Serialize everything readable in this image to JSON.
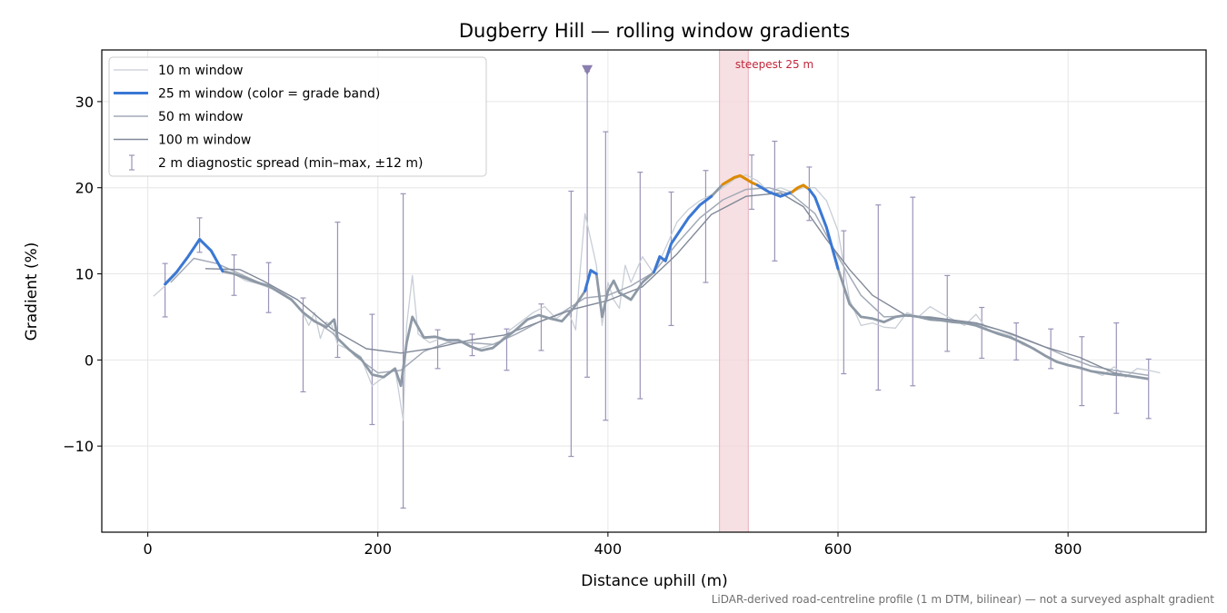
{
  "chart_data": {
    "type": "line",
    "title": "Dugberry Hill — rolling window gradients",
    "xlabel": "Distance uphill (m)",
    "ylabel": "Gradient (%)",
    "footnote": "LiDAR-derived road-centreline profile (1 m DTM, bilinear) — not a surveyed asphalt gradient",
    "xlim": [
      -40,
      920
    ],
    "ylim": [
      -20,
      36
    ],
    "xticks": [
      0,
      200,
      400,
      600,
      800
    ],
    "xtick_labels": [
      "0",
      "200",
      "400",
      "600",
      "800"
    ],
    "yticks": [
      -10,
      0,
      10,
      20,
      30
    ],
    "ytick_labels": [
      "−10",
      "0",
      "10",
      "20",
      "30"
    ],
    "grid": true,
    "legend_position": "top-left",
    "colors": {
      "w10": "#c8ced6",
      "w25_band_low": "#3a78d4",
      "w25_band_high": "#dd8a00",
      "w25_base": "#8e99a6",
      "w50": "#a2aab7",
      "w100": "#808898",
      "spread": "#9c93b8",
      "steep_span": "#f4d5da",
      "steep_edge": "#e8aeb8",
      "max_marker": "#8a7fb0"
    },
    "series": [
      {
        "name": "10 m window",
        "key": "w10",
        "x": [
          5,
          15,
          25,
          35,
          45,
          55,
          65,
          75,
          85,
          95,
          105,
          115,
          125,
          135,
          140,
          145,
          150,
          155,
          160,
          165,
          175,
          185,
          195,
          205,
          215,
          222,
          225,
          230,
          235,
          245,
          255,
          265,
          275,
          285,
          295,
          305,
          315,
          325,
          335,
          345,
          355,
          365,
          372,
          375,
          380,
          385,
          390,
          395,
          400,
          405,
          410,
          415,
          420,
          430,
          440,
          450,
          460,
          470,
          480,
          490,
          500,
          510,
          520,
          530,
          540,
          550,
          560,
          570,
          580,
          590,
          600,
          610,
          620,
          630,
          640,
          650,
          660,
          670,
          680,
          690,
          700,
          710,
          720,
          730,
          740,
          750,
          760,
          770,
          780,
          790,
          800,
          810,
          820,
          830,
          840,
          850,
          860,
          870,
          880
        ],
        "y": [
          7.4,
          8.6,
          10,
          12,
          14.2,
          12.6,
          10.5,
          10,
          9.2,
          8.9,
          8.4,
          8,
          7,
          5.4,
          4,
          5.5,
          2.5,
          4.4,
          4,
          1.8,
          1.2,
          0.4,
          -3,
          -2,
          -1,
          -7,
          4,
          9.8,
          3,
          2,
          2.5,
          2,
          2.2,
          1.2,
          1.6,
          2,
          3.5,
          4.5,
          5.5,
          6.2,
          4.8,
          5.8,
          3.5,
          9,
          17,
          14,
          11,
          4,
          9,
          7,
          6,
          11,
          9,
          12,
          10,
          13,
          16,
          17.5,
          18.5,
          19.2,
          20,
          21,
          21.5,
          20.8,
          19.5,
          20,
          19.5,
          20,
          20,
          18.5,
          15,
          7,
          4,
          4.3,
          3.8,
          3.7,
          5.5,
          5,
          6.2,
          5.4,
          4.7,
          4,
          5.3,
          3.5,
          3.2,
          2.8,
          1.8,
          1.3,
          0.4,
          -0.3,
          -0.7,
          -0.9,
          -1.3,
          -1.8,
          -0.8,
          -2,
          -1,
          -1.2,
          -1.5
        ]
      },
      {
        "name": "25 m window (color = grade band)",
        "key": "w25",
        "x": [
          15,
          25,
          35,
          45,
          55,
          65,
          75,
          85,
          95,
          105,
          115,
          125,
          135,
          145,
          155,
          162,
          165,
          175,
          185,
          195,
          205,
          215,
          220,
          225,
          230,
          240,
          250,
          260,
          270,
          280,
          290,
          300,
          310,
          320,
          330,
          340,
          350,
          360,
          370,
          380,
          385,
          390,
          395,
          400,
          405,
          410,
          420,
          430,
          440,
          445,
          450,
          455,
          460,
          470,
          480,
          490,
          500,
          505,
          510,
          515,
          520,
          525,
          530,
          540,
          550,
          560,
          565,
          570,
          575,
          580,
          590,
          600,
          610,
          620,
          630,
          640,
          650,
          660,
          670,
          680,
          690,
          700,
          710,
          720,
          730,
          740,
          750,
          760,
          770,
          780,
          790,
          800,
          810,
          820,
          830,
          840,
          850,
          860,
          870
        ],
        "y": [
          8.8,
          10.2,
          12,
          14,
          12.7,
          10.3,
          10,
          9.5,
          9,
          8.6,
          7.8,
          7,
          5.5,
          4.5,
          3.8,
          4.7,
          2.5,
          1.2,
          0.2,
          -1.7,
          -2,
          -1,
          -3,
          2,
          5,
          2.6,
          2.7,
          2.3,
          2.3,
          1.6,
          1.1,
          1.4,
          2.5,
          3.5,
          4.7,
          5.2,
          4.8,
          4.5,
          6,
          8,
          10.4,
          10,
          5,
          8,
          9.2,
          7.8,
          7,
          9,
          10.2,
          12,
          11.5,
          13.5,
          14.5,
          16.5,
          18,
          19,
          20.4,
          20.8,
          21.2,
          21.4,
          21,
          20.6,
          20.3,
          19.5,
          19,
          19.5,
          20,
          20.3,
          19.8,
          18.9,
          15.4,
          10.6,
          6.5,
          5,
          4.8,
          4.4,
          5,
          5.2,
          5,
          4.7,
          4.6,
          4.4,
          4.3,
          4,
          3.5,
          3,
          2.6,
          2,
          1.3,
          0.5,
          -0.2,
          -0.6,
          -0.9,
          -1.3,
          -1.5,
          -1.7,
          -1.8,
          -2,
          -2.2
        ],
        "highlight_band_threshold": 20
      },
      {
        "name": "50 m window",
        "key": "w50",
        "x": [
          20,
          40,
          60,
          80,
          100,
          120,
          140,
          160,
          180,
          200,
          220,
          240,
          260,
          280,
          300,
          320,
          340,
          360,
          380,
          400,
          420,
          440,
          460,
          480,
          500,
          520,
          540,
          560,
          580,
          600,
          620,
          640,
          660,
          680,
          700,
          720,
          740,
          760,
          780,
          800,
          820,
          840,
          860,
          870
        ],
        "y": [
          9,
          11.8,
          11.2,
          10,
          8.8,
          7.5,
          5,
          3.2,
          0.5,
          -1.5,
          -1.2,
          1,
          2,
          2,
          1.8,
          3,
          4.4,
          5.5,
          7.2,
          7.5,
          8.6,
          10.2,
          13.5,
          16.5,
          18.6,
          19.8,
          20,
          19.2,
          17,
          12,
          7.5,
          5,
          5.1,
          5,
          4.6,
          4.2,
          3.5,
          2.5,
          1.5,
          0.3,
          -0.7,
          -1.2,
          -1.6,
          -1.8
        ]
      },
      {
        "name": "100 m window",
        "key": "w100",
        "x": [
          50,
          80,
          100,
          130,
          160,
          190,
          220,
          250,
          280,
          310,
          340,
          370,
          400,
          430,
          460,
          490,
          520,
          550,
          570,
          590,
          610,
          630,
          660,
          690,
          720,
          750,
          780,
          810,
          840,
          860
        ],
        "y": [
          10.6,
          10.5,
          9.2,
          7,
          3.6,
          1.3,
          0.8,
          1.4,
          2.3,
          2.9,
          4.4,
          5.9,
          6.9,
          8.5,
          12.3,
          16.9,
          19,
          19.4,
          17.8,
          14,
          10.5,
          7.5,
          5.1,
          4.8,
          4.3,
          3.1,
          1.5,
          0.3,
          -1.5,
          -2
        ]
      },
      {
        "name": "2 m diagnostic spread (min–max, ±12 m)",
        "key": "spread",
        "type": "errorbar",
        "x": [
          15,
          45,
          75,
          105,
          135,
          165,
          195,
          222,
          252,
          282,
          312,
          342,
          368,
          382,
          398,
          428,
          455,
          485,
          525,
          545,
          575,
          605,
          635,
          665,
          695,
          725,
          755,
          785,
          812,
          842,
          870
        ],
        "min": [
          5,
          12.5,
          7.5,
          5.5,
          -3.7,
          0.3,
          -7.5,
          -17.2,
          -1,
          0.5,
          -1.2,
          1.1,
          -11.2,
          -2,
          -7,
          -4.5,
          4,
          9,
          17.5,
          11.5,
          16.2,
          -1.6,
          -3.5,
          -3,
          1,
          0.2,
          0,
          -1,
          -5.3,
          -6.2,
          -6.8
        ],
        "max": [
          11.2,
          16.5,
          12.2,
          11.3,
          7.2,
          16,
          5.3,
          19.3,
          3.5,
          3,
          3.6,
          6.5,
          19.6,
          33.5,
          26.5,
          21.8,
          19.5,
          22,
          23.8,
          25.4,
          22.4,
          15,
          18,
          18.9,
          9.8,
          6.1,
          4.3,
          3.6,
          2.7,
          4.3,
          0.1
        ]
      }
    ],
    "max_marker": {
      "x": 382,
      "y": 33.7
    },
    "steepest_span": {
      "label": "steepest 25 m",
      "x": [
        497,
        522
      ]
    }
  }
}
